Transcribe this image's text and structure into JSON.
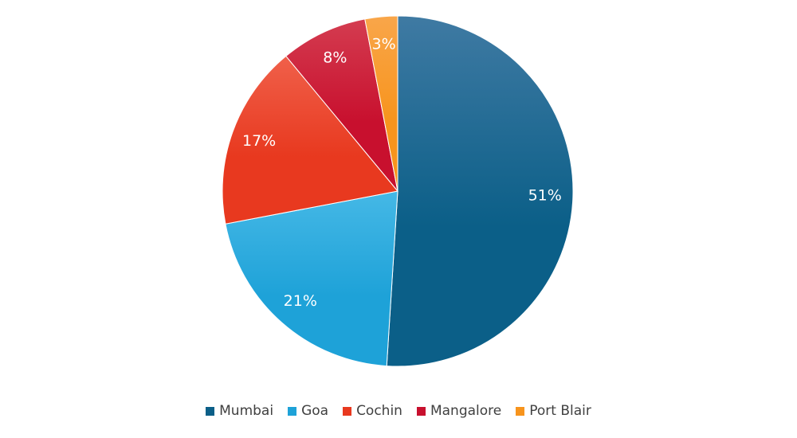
{
  "chart_data": {
    "type": "pie",
    "categories": [
      "Mumbai",
      "Goa",
      "Cochin",
      "Mangalore",
      "Port Blair"
    ],
    "values": [
      51,
      21,
      17,
      8,
      3
    ],
    "value_labels": [
      "51%",
      "21%",
      "17%",
      "8%",
      "3%"
    ],
    "colors": [
      "#0b5f88",
      "#1ea2d8",
      "#e8391f",
      "#c8102e",
      "#f7941d"
    ],
    "highlight_colors": [
      "#3f7aa3",
      "#45b8e6",
      "#f0604a",
      "#d43c50",
      "#f9a64a"
    ],
    "legend_position": "bottom"
  }
}
